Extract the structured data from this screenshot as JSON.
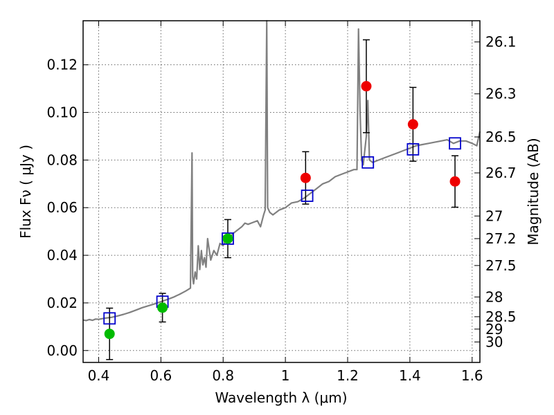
{
  "chart_data": {
    "type": "scatter",
    "xlabel": "Wavelength  λ (μm)",
    "ylabel": "Flux  Fν  ( μJy )",
    "ylabel_right": "Magnitude (AB)",
    "xlim": [
      0.35,
      1.625
    ],
    "ylim": [
      -0.005,
      0.1385
    ],
    "grid": true,
    "x_ticks": [
      0.4,
      0.6,
      0.8,
      1.0,
      1.2,
      1.4,
      1.6
    ],
    "x_tick_labels": [
      "0.4",
      "0.6",
      "0.8",
      "1",
      "1.2",
      "1.4",
      "1.6"
    ],
    "y_ticks": [
      0.0,
      0.02,
      0.04,
      0.06,
      0.08,
      0.1,
      0.12
    ],
    "y_tick_labels": [
      "0.00",
      "0.02",
      "0.04",
      "0.06",
      "0.08",
      "0.10",
      "0.12"
    ],
    "right_ticks": [
      {
        "label": "26.1",
        "flux": 0.1296
      },
      {
        "label": "26.3",
        "flux": 0.1078
      },
      {
        "label": "26.5",
        "flux": 0.0897
      },
      {
        "label": "26.7",
        "flux": 0.0746
      },
      {
        "label": "27",
        "flux": 0.0565
      },
      {
        "label": "27.2",
        "flux": 0.047
      },
      {
        "label": "27.5",
        "flux": 0.0357
      },
      {
        "label": "28",
        "flux": 0.0225
      },
      {
        "label": "28.5",
        "flux": 0.0142
      },
      {
        "label": "29",
        "flux": 0.009
      },
      {
        "label": "30",
        "flux": 0.0036
      }
    ],
    "colors": {
      "spectrum": "#808080",
      "model_squares": "#0000cc",
      "green_points": "#00bb00",
      "red_points": "#ee0000",
      "errorbars": "#000000",
      "grid": "#666666"
    },
    "series": [
      {
        "kind": "line",
        "points": [
          [
            0.35,
            0.0128
          ],
          [
            0.36,
            0.0126
          ],
          [
            0.37,
            0.013
          ],
          [
            0.38,
            0.0127
          ],
          [
            0.39,
            0.0132
          ],
          [
            0.4,
            0.0131
          ],
          [
            0.42,
            0.0136
          ],
          [
            0.44,
            0.0139
          ],
          [
            0.46,
            0.0145
          ],
          [
            0.48,
            0.0152
          ],
          [
            0.5,
            0.016
          ],
          [
            0.52,
            0.017
          ],
          [
            0.54,
            0.018
          ],
          [
            0.56,
            0.0188
          ],
          [
            0.58,
            0.0196
          ],
          [
            0.6,
            0.0205
          ],
          [
            0.62,
            0.0214
          ],
          [
            0.64,
            0.0224
          ],
          [
            0.66,
            0.0236
          ],
          [
            0.68,
            0.025
          ],
          [
            0.695,
            0.0262
          ],
          [
            0.7,
            0.083
          ],
          [
            0.702,
            0.031
          ],
          [
            0.705,
            0.028
          ],
          [
            0.71,
            0.033
          ],
          [
            0.715,
            0.03
          ],
          [
            0.72,
            0.044
          ],
          [
            0.725,
            0.034
          ],
          [
            0.73,
            0.042
          ],
          [
            0.735,
            0.036
          ],
          [
            0.74,
            0.039
          ],
          [
            0.745,
            0.035
          ],
          [
            0.75,
            0.047
          ],
          [
            0.76,
            0.038
          ],
          [
            0.77,
            0.042
          ],
          [
            0.78,
            0.04
          ],
          [
            0.79,
            0.045
          ],
          [
            0.8,
            0.044
          ],
          [
            0.81,
            0.047
          ],
          [
            0.82,
            0.0455
          ],
          [
            0.83,
            0.049
          ],
          [
            0.84,
            0.05
          ],
          [
            0.85,
            0.051
          ],
          [
            0.86,
            0.052
          ],
          [
            0.87,
            0.0535
          ],
          [
            0.88,
            0.053
          ],
          [
            0.9,
            0.054
          ],
          [
            0.91,
            0.0545
          ],
          [
            0.92,
            0.052
          ],
          [
            0.93,
            0.057
          ],
          [
            0.935,
            0.059
          ],
          [
            0.94,
            0.14
          ],
          [
            0.943,
            0.06
          ],
          [
            0.95,
            0.058
          ],
          [
            0.96,
            0.057
          ],
          [
            0.98,
            0.059
          ],
          [
            1.0,
            0.06
          ],
          [
            1.02,
            0.062
          ],
          [
            1.04,
            0.0625
          ],
          [
            1.06,
            0.064
          ],
          [
            1.08,
            0.066
          ],
          [
            1.1,
            0.068
          ],
          [
            1.12,
            0.07
          ],
          [
            1.14,
            0.071
          ],
          [
            1.16,
            0.073
          ],
          [
            1.18,
            0.074
          ],
          [
            1.2,
            0.075
          ],
          [
            1.22,
            0.076
          ],
          [
            1.23,
            0.076
          ],
          [
            1.235,
            0.135
          ],
          [
            1.24,
            0.1
          ],
          [
            1.245,
            0.08
          ],
          [
            1.25,
            0.078
          ],
          [
            1.26,
            0.09
          ],
          [
            1.265,
            0.105
          ],
          [
            1.27,
            0.08
          ],
          [
            1.28,
            0.079
          ],
          [
            1.3,
            0.08
          ],
          [
            1.32,
            0.081
          ],
          [
            1.34,
            0.082
          ],
          [
            1.36,
            0.083
          ],
          [
            1.38,
            0.084
          ],
          [
            1.4,
            0.085
          ],
          [
            1.42,
            0.086
          ],
          [
            1.44,
            0.0865
          ],
          [
            1.46,
            0.087
          ],
          [
            1.48,
            0.0875
          ],
          [
            1.5,
            0.088
          ],
          [
            1.52,
            0.0885
          ],
          [
            1.54,
            0.087
          ],
          [
            1.56,
            0.088
          ],
          [
            1.58,
            0.088
          ],
          [
            1.6,
            0.087
          ],
          [
            1.615,
            0.086
          ],
          [
            1.625,
            0.092
          ]
        ]
      },
      {
        "kind": "squares",
        "points": [
          [
            0.435,
            0.0135
          ],
          [
            0.605,
            0.0205
          ],
          [
            0.815,
            0.047
          ],
          [
            1.07,
            0.065
          ],
          [
            1.265,
            0.079
          ],
          [
            1.41,
            0.0845
          ],
          [
            1.545,
            0.087
          ]
        ]
      },
      {
        "kind": "circles-green",
        "points": [
          {
            "x": 0.435,
            "y": 0.007,
            "err": 0.0108
          },
          {
            "x": 0.605,
            "y": 0.018,
            "err": 0.006
          },
          {
            "x": 0.815,
            "y": 0.047,
            "err": 0.008
          }
        ]
      },
      {
        "kind": "circles-red",
        "points": [
          {
            "x": 1.065,
            "y": 0.0725,
            "err": 0.011
          },
          {
            "x": 1.26,
            "y": 0.111,
            "err": 0.0195
          },
          {
            "x": 1.41,
            "y": 0.095,
            "err": 0.0155
          },
          {
            "x": 1.545,
            "y": 0.071,
            "err": 0.0108
          }
        ]
      }
    ]
  }
}
